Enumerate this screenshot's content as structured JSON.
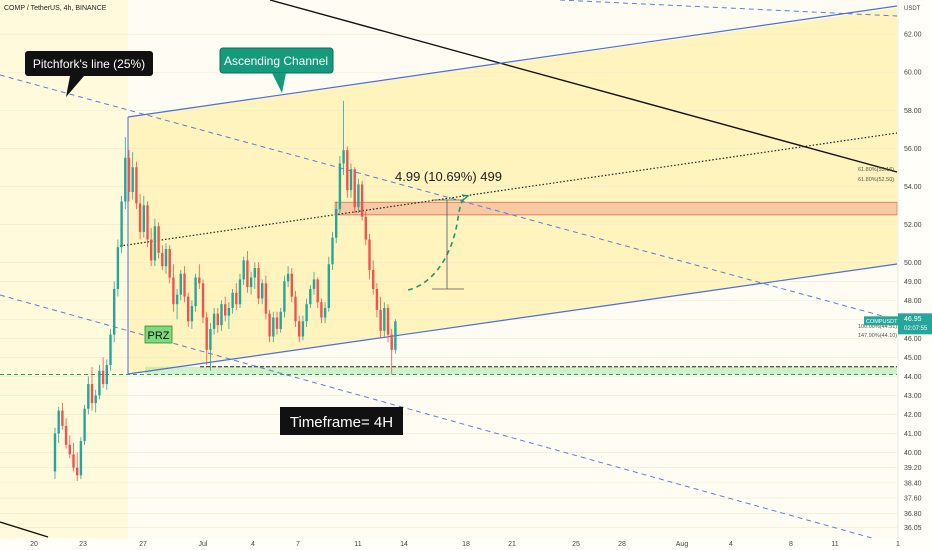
{
  "header": {
    "symbol_line": "COMP / TetherUS, 4h, BINANCE",
    "currency": "USDT"
  },
  "chart_data": {
    "type": "candlestick",
    "ylim": [
      35.5,
      63.8
    ],
    "y_ticks": [
      36.05,
      36.8,
      37.6,
      38.4,
      39.2,
      40.0,
      41.0,
      42.0,
      43.0,
      44.0,
      45.0,
      46.0,
      47.0,
      48.0,
      49.0,
      50.0,
      52.0,
      54.0,
      56.0,
      58.0,
      60.0,
      62.0
    ],
    "x_ticks": [
      "20",
      "23",
      "27",
      "Jul",
      "4",
      "7",
      "11",
      "14",
      "18",
      "21",
      "25",
      "28",
      "Aug",
      "4",
      "8",
      "11",
      "1"
    ],
    "current_price": {
      "value": 46.95,
      "symbol": "COMPUSDT",
      "price_label": "46.95",
      "countdown": "02:07:55",
      "color": "#26a69a"
    },
    "candles": [
      [
        39.0,
        41.3,
        38.6,
        41.0
      ],
      [
        41.0,
        42.4,
        40.5,
        42.2
      ],
      [
        42.2,
        42.6,
        41.2,
        41.4
      ],
      [
        41.4,
        41.8,
        40.2,
        40.4
      ],
      [
        40.4,
        40.9,
        39.7,
        39.9
      ],
      [
        39.9,
        40.5,
        39.0,
        39.2
      ],
      [
        39.2,
        40.0,
        38.5,
        38.8
      ],
      [
        38.8,
        40.8,
        38.6,
        40.6
      ],
      [
        40.6,
        42.5,
        40.4,
        42.3
      ],
      [
        42.3,
        44.0,
        42.0,
        43.6
      ],
      [
        43.6,
        44.5,
        42.2,
        42.6
      ],
      [
        42.6,
        43.3,
        42.1,
        43.0
      ],
      [
        43.0,
        44.6,
        42.8,
        44.3
      ],
      [
        44.3,
        45.0,
        43.4,
        43.6
      ],
      [
        43.6,
        44.9,
        43.3,
        44.6
      ],
      [
        44.6,
        46.5,
        44.3,
        46.2
      ],
      [
        46.2,
        49.0,
        45.8,
        48.6
      ],
      [
        48.6,
        51.2,
        48.2,
        50.8
      ],
      [
        50.8,
        53.5,
        50.5,
        53.2
      ],
      [
        53.2,
        56.6,
        52.8,
        55.5
      ],
      [
        55.5,
        55.9,
        53.2,
        53.7
      ],
      [
        53.7,
        55.8,
        53.3,
        55.0
      ],
      [
        55.0,
        55.3,
        52.8,
        53.1
      ],
      [
        53.1,
        53.6,
        51.2,
        51.6
      ],
      [
        51.6,
        53.5,
        51.3,
        53.0
      ],
      [
        53.0,
        53.2,
        50.8,
        51.2
      ],
      [
        51.2,
        51.8,
        49.8,
        50.1
      ],
      [
        50.1,
        52.3,
        49.8,
        51.9
      ],
      [
        51.9,
        52.1,
        50.2,
        50.5
      ],
      [
        50.5,
        50.9,
        49.6,
        49.8
      ],
      [
        49.8,
        51.0,
        49.4,
        50.7
      ],
      [
        50.7,
        50.9,
        48.9,
        49.2
      ],
      [
        49.2,
        49.9,
        47.4,
        47.8
      ],
      [
        47.8,
        48.6,
        47.0,
        48.3
      ],
      [
        48.3,
        49.6,
        48.0,
        49.4
      ],
      [
        49.4,
        49.8,
        47.9,
        48.2
      ],
      [
        48.2,
        48.4,
        46.6,
        46.9
      ],
      [
        46.9,
        48.0,
        46.5,
        47.7
      ],
      [
        47.7,
        49.4,
        47.4,
        49.2
      ],
      [
        49.2,
        49.9,
        48.6,
        48.9
      ],
      [
        48.9,
        49.1,
        46.8,
        47.1
      ],
      [
        47.1,
        47.4,
        44.6,
        45.4
      ],
      [
        45.4,
        46.8,
        44.3,
        46.5
      ],
      [
        46.5,
        47.6,
        46.2,
        47.3
      ],
      [
        47.3,
        47.6,
        46.3,
        46.7
      ],
      [
        46.7,
        48.0,
        46.4,
        47.8
      ],
      [
        47.8,
        48.2,
        46.9,
        47.2
      ],
      [
        47.2,
        47.9,
        46.5,
        47.6
      ],
      [
        47.6,
        48.6,
        47.3,
        48.4
      ],
      [
        48.4,
        48.9,
        47.5,
        47.8
      ],
      [
        47.8,
        49.4,
        47.6,
        49.1
      ],
      [
        49.1,
        50.3,
        48.8,
        50.1
      ],
      [
        50.1,
        50.6,
        48.4,
        48.7
      ],
      [
        48.7,
        49.5,
        48.3,
        49.2
      ],
      [
        49.2,
        50.0,
        48.6,
        49.7
      ],
      [
        49.7,
        50.0,
        47.8,
        48.1
      ],
      [
        48.1,
        49.1,
        47.8,
        48.9
      ],
      [
        48.9,
        49.3,
        47.0,
        47.3
      ],
      [
        47.3,
        47.5,
        45.8,
        46.1
      ],
      [
        46.1,
        47.4,
        45.8,
        47.1
      ],
      [
        47.1,
        47.4,
        46.2,
        46.5
      ],
      [
        46.5,
        47.6,
        46.3,
        47.4
      ],
      [
        47.4,
        49.3,
        47.1,
        49.0
      ],
      [
        49.0,
        49.8,
        48.7,
        49.4
      ],
      [
        49.4,
        49.7,
        47.9,
        48.2
      ],
      [
        48.2,
        48.5,
        46.6,
        46.9
      ],
      [
        46.9,
        47.2,
        45.8,
        46.1
      ],
      [
        46.1,
        47.2,
        45.9,
        46.9
      ],
      [
        46.9,
        48.1,
        46.6,
        47.8
      ],
      [
        47.8,
        48.8,
        47.6,
        48.6
      ],
      [
        48.6,
        49.5,
        48.3,
        49.1
      ],
      [
        49.1,
        49.2,
        47.6,
        47.9
      ],
      [
        47.9,
        48.1,
        46.8,
        47.1
      ],
      [
        47.1,
        47.9,
        46.8,
        47.6
      ],
      [
        47.6,
        50.3,
        47.4,
        49.9
      ],
      [
        49.9,
        51.6,
        49.6,
        51.3
      ],
      [
        51.3,
        53.2,
        51.0,
        52.8
      ],
      [
        52.8,
        55.6,
        52.6,
        55.2
      ],
      [
        55.2,
        58.5,
        54.6,
        55.9
      ],
      [
        55.9,
        56.1,
        53.4,
        53.8
      ],
      [
        53.8,
        55.2,
        53.4,
        54.9
      ],
      [
        54.9,
        55.0,
        52.6,
        52.9
      ],
      [
        52.9,
        54.4,
        52.6,
        54.1
      ],
      [
        54.1,
        54.3,
        52.2,
        52.4
      ],
      [
        52.4,
        52.7,
        50.9,
        51.2
      ],
      [
        51.2,
        51.5,
        49.1,
        49.6
      ],
      [
        49.6,
        50.1,
        48.3,
        48.6
      ],
      [
        48.6,
        48.9,
        47.1,
        47.5
      ],
      [
        47.5,
        48.2,
        46.0,
        46.4
      ],
      [
        46.4,
        47.9,
        46.1,
        47.6
      ],
      [
        47.6,
        47.8,
        45.8,
        46.2
      ],
      [
        46.2,
        46.5,
        44.1,
        45.4
      ],
      [
        45.4,
        47.0,
        45.2,
        46.9
      ]
    ],
    "fib_levels": [
      {
        "label": "61.80%(53.16)",
        "value": 53.16
      },
      {
        "label": "61.80%(52.50)",
        "value": 52.5
      },
      {
        "label": "100.00%(44.51)",
        "value": 44.51
      },
      {
        "label": "147.90%(44.10)",
        "value": 44.1
      }
    ],
    "measure_label": "4.99 (10.69%) 499",
    "colors": {
      "up": "#26a69a",
      "down": "#ef5350",
      "channel": "#4a6fdc",
      "zone": "rgba(255,240,160,0.65)",
      "przfill": "rgba(120,220,120,0.35)",
      "resistfill": "rgba(240,150,130,0.45)"
    }
  },
  "annotations": {
    "pitchfork_label": "Pitchfork's line (25%)",
    "channel_label": "Ascending Channel",
    "prz_label": "PRZ",
    "timeframe_label": "Timeframe= 4H"
  }
}
